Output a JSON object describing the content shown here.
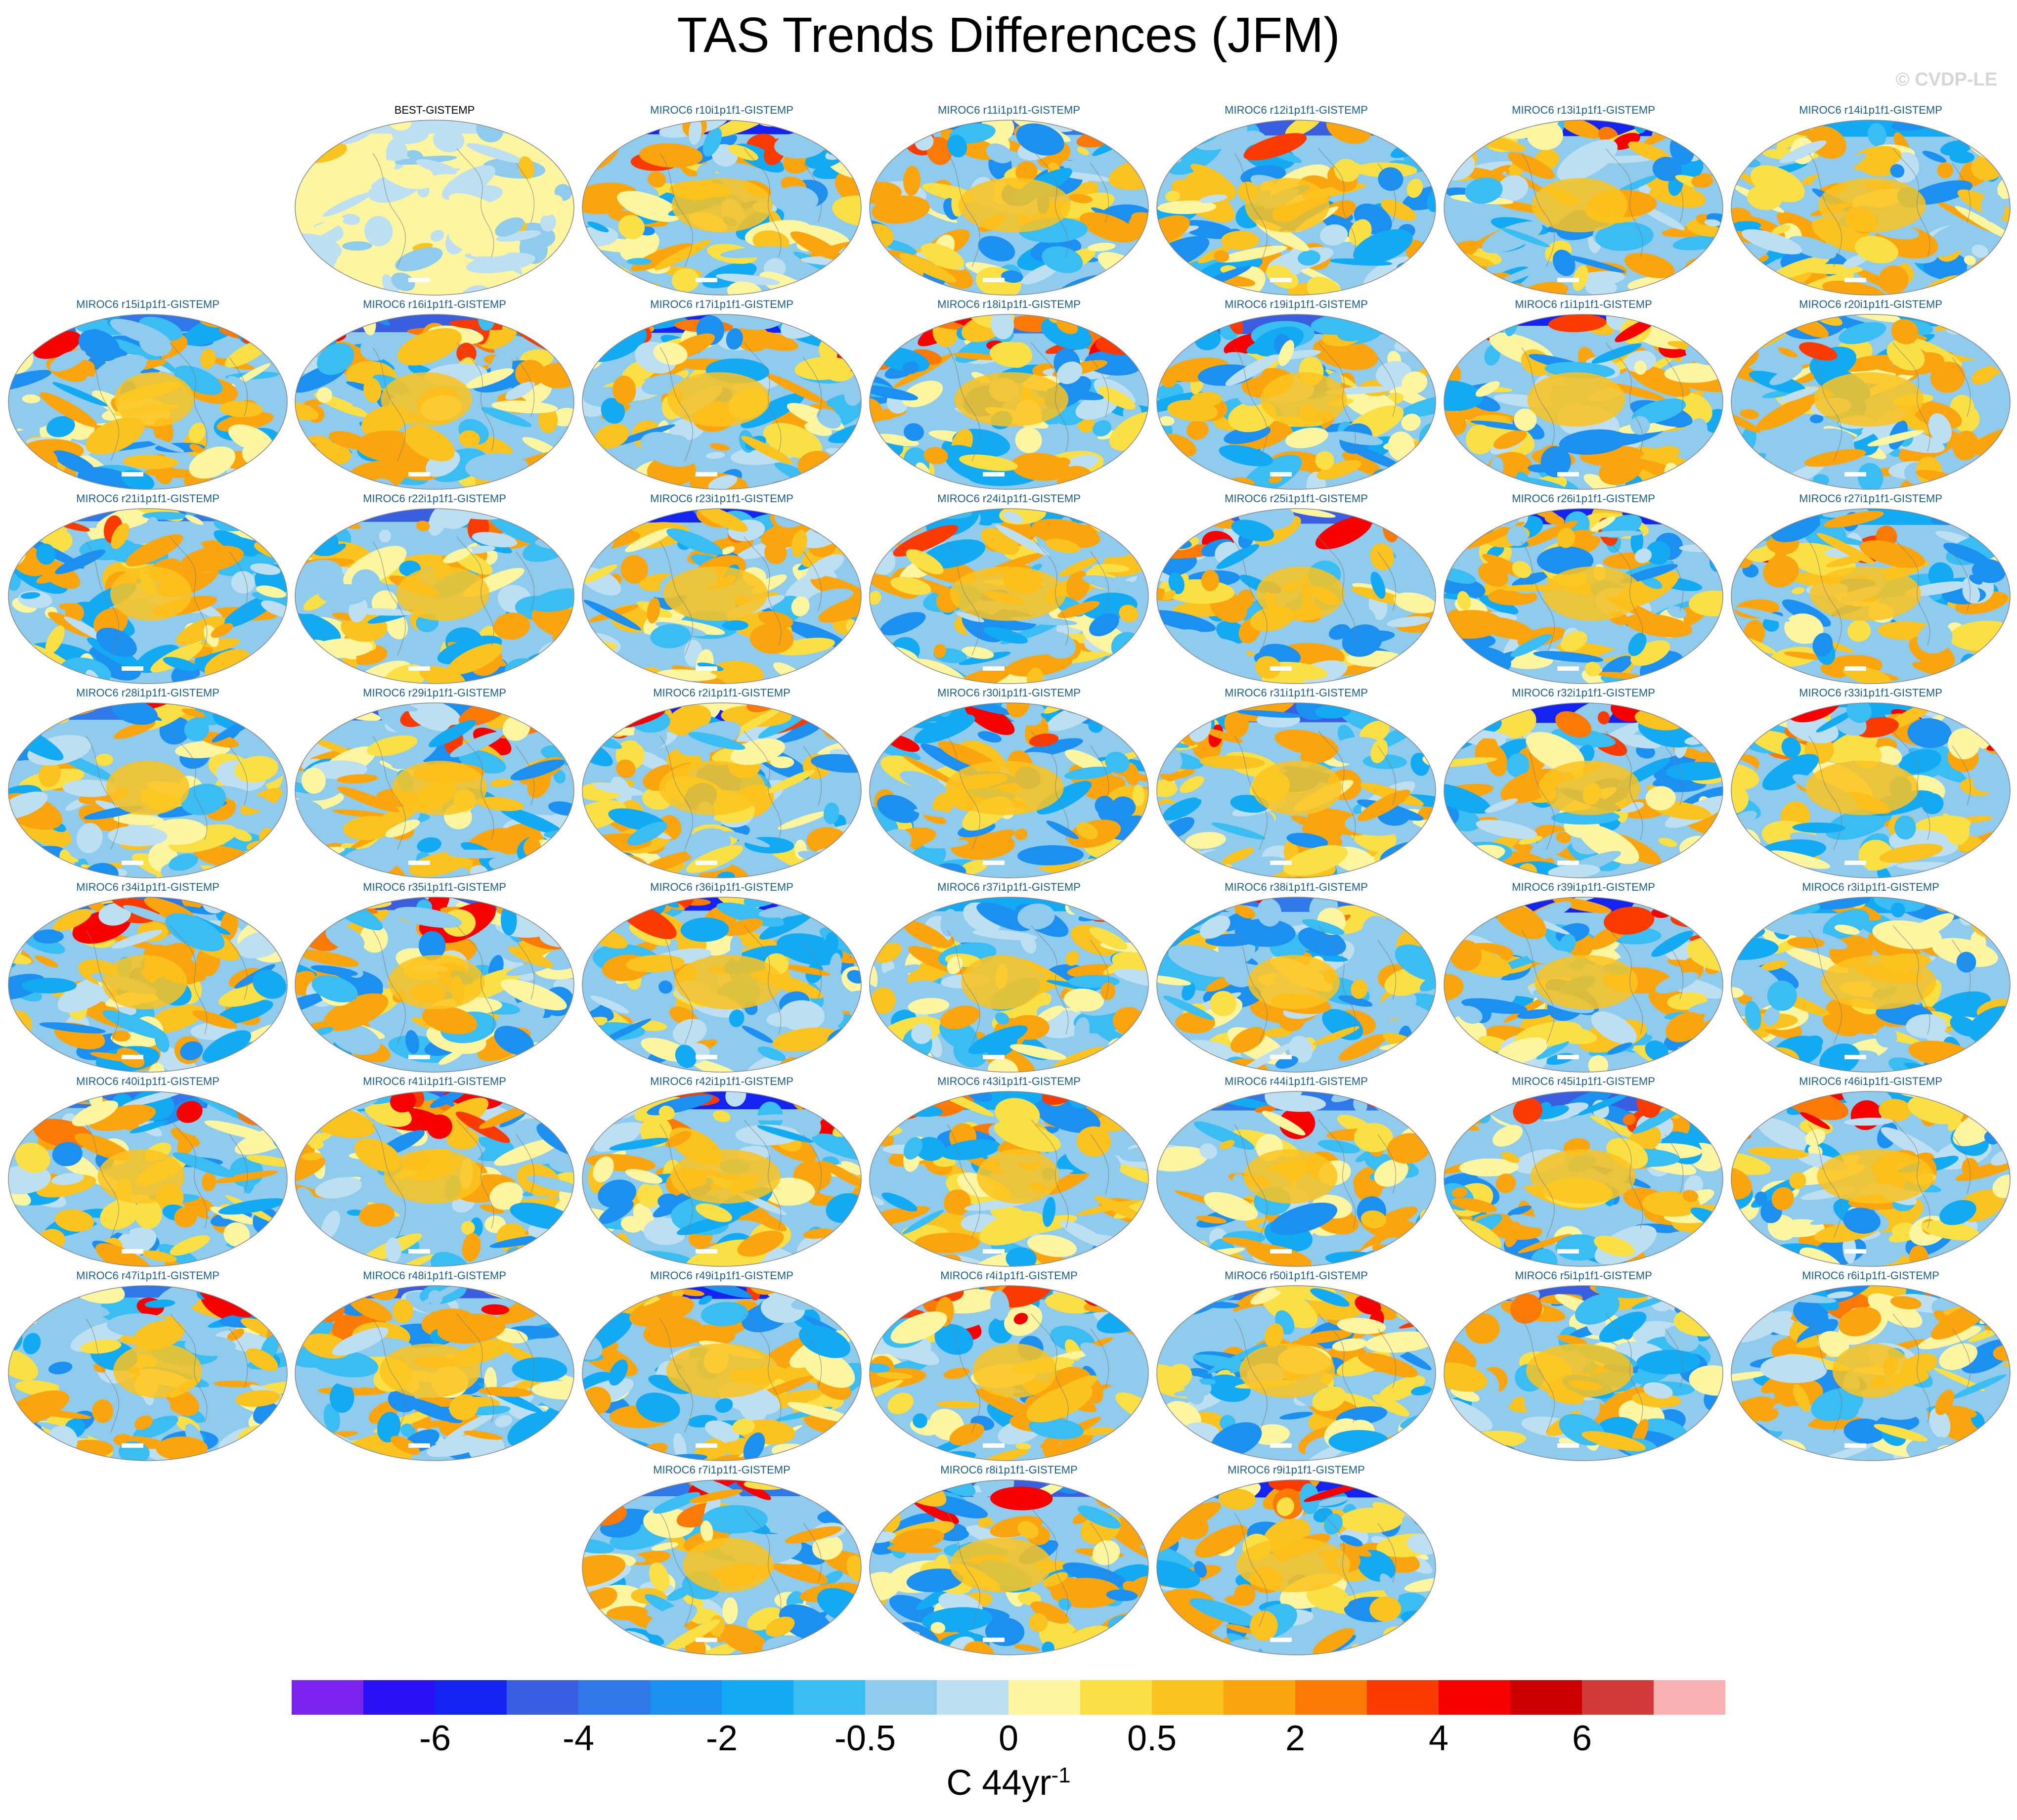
{
  "title": "TAS Trends Differences (JFM)",
  "watermark": "© CVDP-LE",
  "units": {
    "base": "C 44yr",
    "exponent": "-1"
  },
  "colorbar": {
    "colors": [
      "#7a22ee",
      "#2a10f5",
      "#1424f0",
      "#3a5ee0",
      "#2f78ea",
      "#1c90f0",
      "#12aaf3",
      "#3abdf2",
      "#8ecbec",
      "#bcdff2",
      "#fdf5a0",
      "#fbe045",
      "#fbc31f",
      "#fba50e",
      "#fb7a06",
      "#fb3a00",
      "#f80000",
      "#cc0000",
      "#d23a3a",
      "#f9b1b1"
    ],
    "tick_labels": [
      "-6",
      "-4",
      "-2",
      "-0.5",
      "0",
      "0.5",
      "2",
      "4",
      "6"
    ]
  },
  "panels": [
    {
      "label": "BEST-GISTEMP",
      "type": "obs"
    },
    {
      "label": "MIROC6 r10i1p1f1-GISTEMP"
    },
    {
      "label": "MIROC6 r11i1p1f1-GISTEMP"
    },
    {
      "label": "MIROC6 r12i1p1f1-GISTEMP"
    },
    {
      "label": "MIROC6 r13i1p1f1-GISTEMP"
    },
    {
      "label": "MIROC6 r14i1p1f1-GISTEMP"
    },
    {
      "label": "MIROC6 r15i1p1f1-GISTEMP"
    },
    {
      "label": "MIROC6 r16i1p1f1-GISTEMP"
    },
    {
      "label": "MIROC6 r17i1p1f1-GISTEMP"
    },
    {
      "label": "MIROC6 r18i1p1f1-GISTEMP"
    },
    {
      "label": "MIROC6 r19i1p1f1-GISTEMP"
    },
    {
      "label": "MIROC6 r1i1p1f1-GISTEMP"
    },
    {
      "label": "MIROC6 r20i1p1f1-GISTEMP"
    },
    {
      "label": "MIROC6 r21i1p1f1-GISTEMP"
    },
    {
      "label": "MIROC6 r22i1p1f1-GISTEMP"
    },
    {
      "label": "MIROC6 r23i1p1f1-GISTEMP"
    },
    {
      "label": "MIROC6 r24i1p1f1-GISTEMP"
    },
    {
      "label": "MIROC6 r25i1p1f1-GISTEMP"
    },
    {
      "label": "MIROC6 r26i1p1f1-GISTEMP"
    },
    {
      "label": "MIROC6 r27i1p1f1-GISTEMP"
    },
    {
      "label": "MIROC6 r28i1p1f1-GISTEMP"
    },
    {
      "label": "MIROC6 r29i1p1f1-GISTEMP"
    },
    {
      "label": "MIROC6 r2i1p1f1-GISTEMP"
    },
    {
      "label": "MIROC6 r30i1p1f1-GISTEMP"
    },
    {
      "label": "MIROC6 r31i1p1f1-GISTEMP"
    },
    {
      "label": "MIROC6 r32i1p1f1-GISTEMP"
    },
    {
      "label": "MIROC6 r33i1p1f1-GISTEMP"
    },
    {
      "label": "MIROC6 r34i1p1f1-GISTEMP"
    },
    {
      "label": "MIROC6 r35i1p1f1-GISTEMP"
    },
    {
      "label": "MIROC6 r36i1p1f1-GISTEMP"
    },
    {
      "label": "MIROC6 r37i1p1f1-GISTEMP"
    },
    {
      "label": "MIROC6 r38i1p1f1-GISTEMP"
    },
    {
      "label": "MIROC6 r39i1p1f1-GISTEMP"
    },
    {
      "label": "MIROC6 r3i1p1f1-GISTEMP"
    },
    {
      "label": "MIROC6 r40i1p1f1-GISTEMP"
    },
    {
      "label": "MIROC6 r41i1p1f1-GISTEMP"
    },
    {
      "label": "MIROC6 r42i1p1f1-GISTEMP"
    },
    {
      "label": "MIROC6 r43i1p1f1-GISTEMP"
    },
    {
      "label": "MIROC6 r44i1p1f1-GISTEMP"
    },
    {
      "label": "MIROC6 r45i1p1f1-GISTEMP"
    },
    {
      "label": "MIROC6 r46i1p1f1-GISTEMP"
    },
    {
      "label": "MIROC6 r47i1p1f1-GISTEMP"
    },
    {
      "label": "MIROC6 r48i1p1f1-GISTEMP"
    },
    {
      "label": "MIROC6 r49i1p1f1-GISTEMP"
    },
    {
      "label": "MIROC6 r4i1p1f1-GISTEMP"
    },
    {
      "label": "MIROC6 r50i1p1f1-GISTEMP"
    },
    {
      "label": "MIROC6 r5i1p1f1-GISTEMP"
    },
    {
      "label": "MIROC6 r6i1p1f1-GISTEMP"
    },
    {
      "label": "MIROC6 r7i1p1f1-GISTEMP"
    },
    {
      "label": "MIROC6 r8i1p1f1-GISTEMP"
    },
    {
      "label": "MIROC6 r9i1p1f1-GISTEMP"
    }
  ]
}
